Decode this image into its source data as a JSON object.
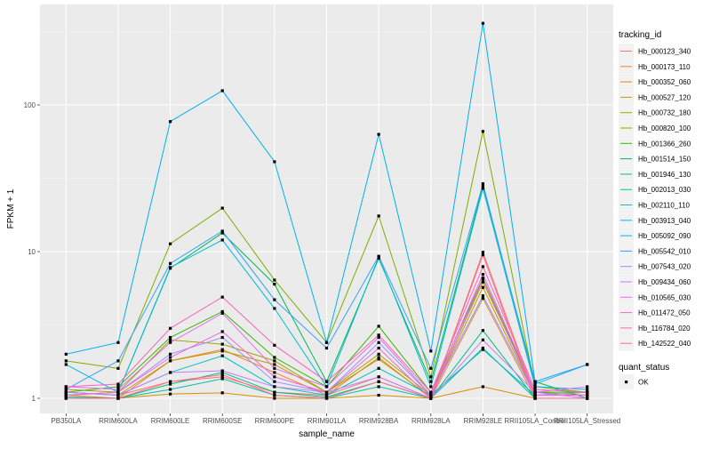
{
  "chart_data": {
    "type": "line",
    "xlabel": "sample_name",
    "ylabel": "FPKM + 1",
    "y_scale": "log10",
    "ylim": [
      0.8,
      480
    ],
    "y_ticks": [
      1,
      10,
      100
    ],
    "y_tick_labels": [
      "1",
      "10",
      "100"
    ],
    "grid": true,
    "legend_position": "right",
    "categories": [
      "PB350LA",
      "RRIM600LA",
      "RRIM600LE",
      "RRIM600SE",
      "RRIM600PE",
      "RRIM901LA",
      "RRIM928BA",
      "RRIM928LA",
      "RRIM928LE",
      "RRII105LA_Control",
      "RRII105LA_Stressed"
    ],
    "legend_title": "tracking_id",
    "shape_legend": {
      "title": "quant_status",
      "items": [
        "OK"
      ]
    },
    "series": [
      {
        "name": "Hb_000123_340",
        "color": "#F8766D",
        "values": [
          1.1,
          1.05,
          1.3,
          1.4,
          1.1,
          1.05,
          1.4,
          1.0,
          9.9,
          1.05,
          1.05
        ]
      },
      {
        "name": "Hb_000173_110",
        "color": "#EA8331",
        "values": [
          1.05,
          1.0,
          1.8,
          2.15,
          1.5,
          1.05,
          1.9,
          1.0,
          4.8,
          1.0,
          1.0
        ]
      },
      {
        "name": "Hb_000352_060",
        "color": "#D89000",
        "values": [
          1.0,
          1.0,
          1.07,
          1.09,
          1.0,
          1.0,
          1.05,
          1.0,
          1.2,
          1.0,
          1.0
        ]
      },
      {
        "name": "Hb_000527_120",
        "color": "#C09B00",
        "values": [
          1.1,
          1.05,
          1.8,
          2.1,
          1.7,
          1.1,
          1.85,
          1.02,
          5.7,
          1.05,
          1.1
        ]
      },
      {
        "name": "Hb_000732_180",
        "color": "#A3A500",
        "values": [
          1.15,
          1.1,
          2.5,
          2.34,
          1.8,
          1.1,
          2.0,
          1.05,
          6.2,
          1.1,
          1.05
        ]
      },
      {
        "name": "Hb_000820_100",
        "color": "#7CAE00",
        "values": [
          1.8,
          1.6,
          11.3,
          19.8,
          6.4,
          2.4,
          17.5,
          1.4,
          66,
          1.2,
          1.1
        ]
      },
      {
        "name": "Hb_001366_260",
        "color": "#39B600",
        "values": [
          1.1,
          1.2,
          2.6,
          3.9,
          1.9,
          1.2,
          3.1,
          1.1,
          6.6,
          1.1,
          1.1
        ]
      },
      {
        "name": "Hb_001514_150",
        "color": "#00BB4E",
        "values": [
          1.05,
          1.1,
          7.7,
          13.4,
          6.0,
          1.3,
          9.0,
          1.3,
          28,
          1.3,
          1.0
        ]
      },
      {
        "name": "Hb_001946_130",
        "color": "#00BF7D",
        "values": [
          1.02,
          1.0,
          1.25,
          1.5,
          1.1,
          1.02,
          1.3,
          1.0,
          2.9,
          1.0,
          1.0
        ]
      },
      {
        "name": "Hb_002013_030",
        "color": "#00C1A3",
        "values": [
          1.0,
          1.0,
          1.15,
          1.36,
          1.05,
          1.0,
          1.2,
          1.0,
          2.2,
          1.0,
          1.0
        ]
      },
      {
        "name": "Hb_002110_110",
        "color": "#00BFC4",
        "values": [
          1.1,
          1.05,
          1.5,
          1.95,
          1.2,
          1.05,
          1.6,
          1.05,
          2.15,
          1.05,
          1.05
        ]
      },
      {
        "name": "Hb_003913_040",
        "color": "#00BAE0",
        "values": [
          1.7,
          1.1,
          7.8,
          12.0,
          4.1,
          1.2,
          9.2,
          1.2,
          27,
          1.2,
          1.15
        ]
      },
      {
        "name": "Hb_005092_090",
        "color": "#00B0F6",
        "values": [
          2.0,
          2.4,
          77,
          125,
          41,
          2.4,
          63,
          2.1,
          360,
          1.3,
          1.7
        ]
      },
      {
        "name": "Hb_005542_010",
        "color": "#35A2FF",
        "values": [
          1.15,
          1.8,
          8.3,
          13.8,
          4.7,
          2.2,
          9.3,
          1.6,
          29,
          1.25,
          1.7
        ]
      },
      {
        "name": "Hb_007543_020",
        "color": "#9590FF",
        "values": [
          1.05,
          1.1,
          2.0,
          2.6,
          1.3,
          1.1,
          2.4,
          1.05,
          5.0,
          1.05,
          1.1
        ]
      },
      {
        "name": "Hb_009434_060",
        "color": "#C77CFF",
        "values": [
          1.1,
          1.05,
          1.5,
          1.54,
          1.2,
          1.1,
          1.4,
          1.0,
          2.5,
          1.1,
          1.0
        ]
      },
      {
        "name": "Hb_010565_030",
        "color": "#E76BF3",
        "values": [
          1.2,
          1.15,
          2.4,
          3.8,
          1.6,
          1.2,
          2.6,
          1.05,
          7.0,
          1.1,
          1.2
        ]
      },
      {
        "name": "Hb_011472_050",
        "color": "#FA62DB",
        "values": [
          1.05,
          1.1,
          1.9,
          2.85,
          1.4,
          1.1,
          2.2,
          1.0,
          6.5,
          1.05,
          1.05
        ]
      },
      {
        "name": "Hb_116784_020",
        "color": "#FF62BC",
        "values": [
          1.2,
          1.25,
          3.0,
          4.9,
          2.3,
          1.3,
          2.7,
          1.1,
          7.9,
          1.15,
          1.1
        ]
      },
      {
        "name": "Hb_142522_040",
        "color": "#FF6C91",
        "values": [
          1.0,
          1.0,
          1.3,
          1.45,
          1.05,
          1.0,
          1.3,
          1.0,
          9.5,
          1.0,
          1.0
        ]
      }
    ]
  }
}
